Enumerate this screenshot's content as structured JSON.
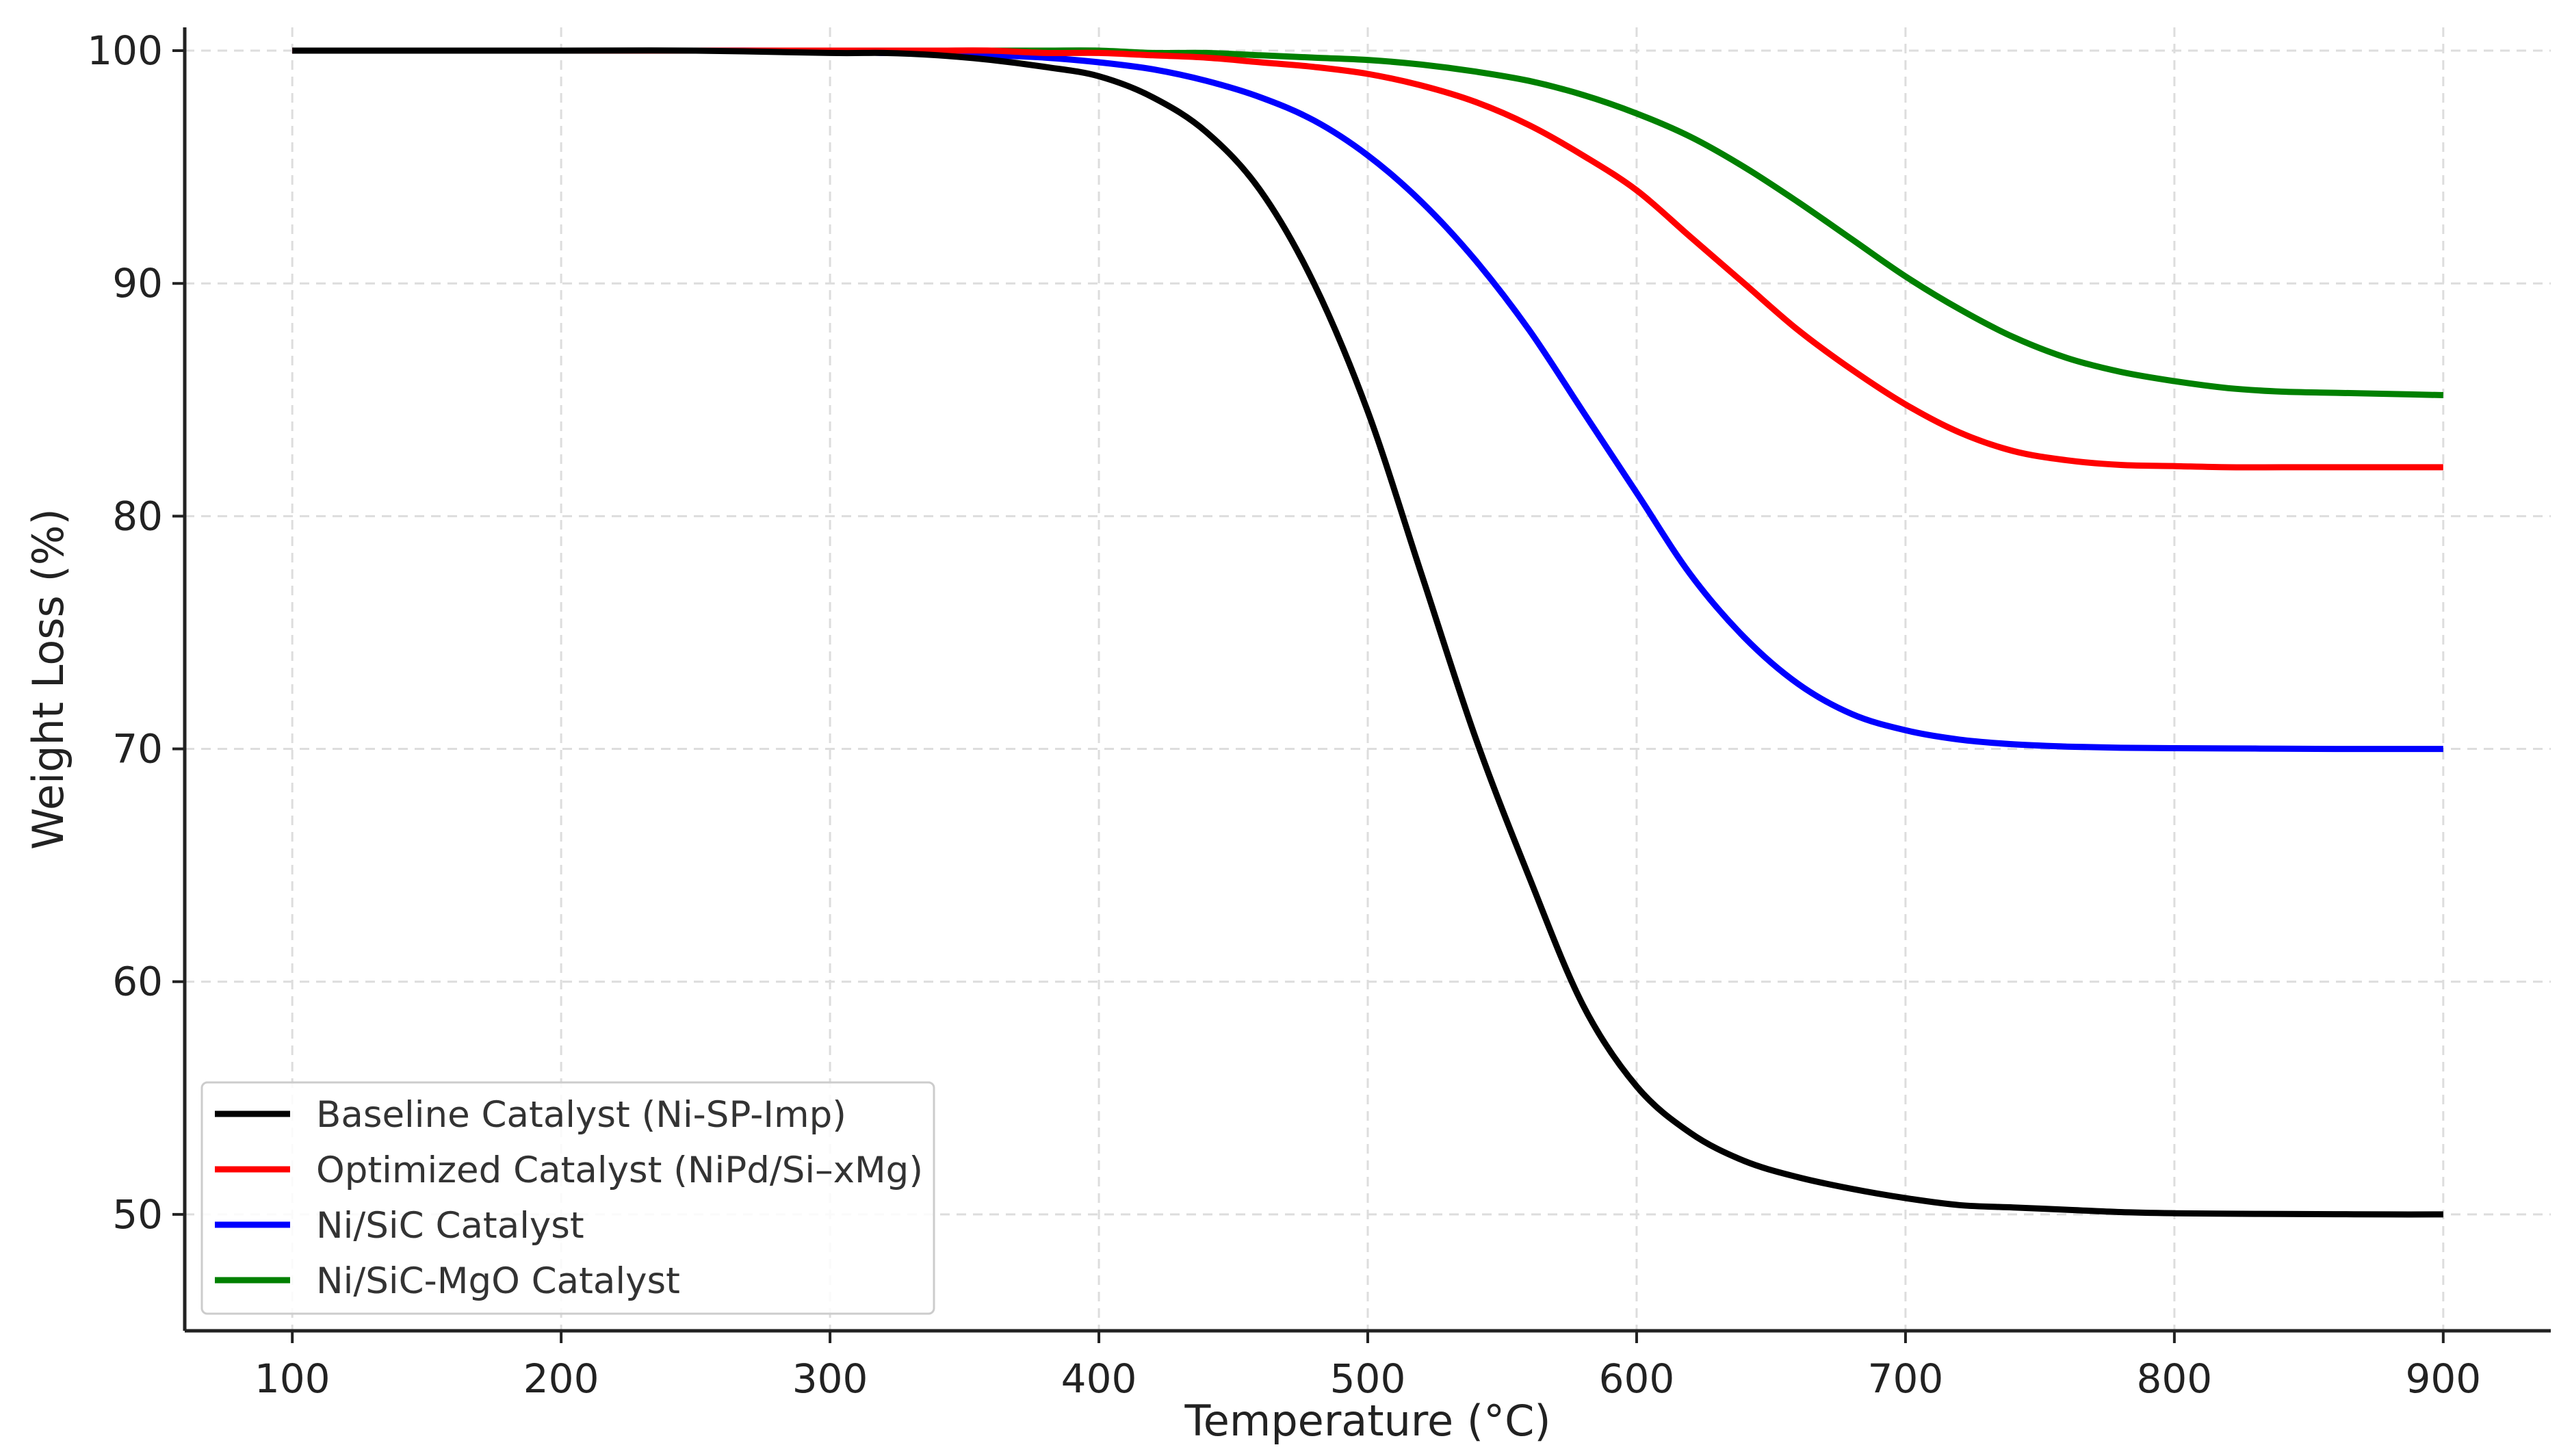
{
  "chart_data": {
    "type": "line",
    "title": "",
    "xlabel": "Temperature (°C)",
    "ylabel": "Weight Loss (%)",
    "xlim": [
      60,
      940
    ],
    "ylim": [
      45,
      101
    ],
    "xticks": [
      100,
      200,
      300,
      400,
      500,
      600,
      700,
      800,
      900
    ],
    "yticks": [
      50,
      60,
      70,
      80,
      90,
      100
    ],
    "grid": true,
    "legend_position": "lower-left",
    "x": [
      100,
      150,
      200,
      250,
      300,
      320,
      340,
      360,
      380,
      400,
      420,
      440,
      460,
      480,
      500,
      520,
      540,
      560,
      580,
      600,
      620,
      640,
      660,
      680,
      700,
      720,
      740,
      760,
      780,
      800,
      820,
      840,
      860,
      880,
      900
    ],
    "series": [
      {
        "name": "Baseline Catalyst (Ni-SP-Imp)",
        "color": "#000000",
        "values": [
          100.0,
          100.0,
          100.0,
          100.0,
          99.9,
          99.9,
          99.8,
          99.6,
          99.3,
          98.9,
          98.0,
          96.5,
          94.0,
          90.0,
          84.5,
          77.5,
          70.5,
          64.5,
          59.0,
          55.5,
          53.5,
          52.3,
          51.6,
          51.1,
          50.7,
          50.4,
          50.3,
          50.2,
          50.1,
          50.05,
          50.03,
          50.02,
          50.01,
          50.0,
          50.0
        ]
      },
      {
        "name": "Optimized Catalyst (NiPd/Si–xMg)",
        "color": "#ff0000",
        "values": [
          100.0,
          100.0,
          100.0,
          100.0,
          100.0,
          100.0,
          100.0,
          100.0,
          99.9,
          99.9,
          99.8,
          99.7,
          99.5,
          99.3,
          99.0,
          98.5,
          97.8,
          96.8,
          95.5,
          94.0,
          92.0,
          90.0,
          88.0,
          86.3,
          84.8,
          83.6,
          82.8,
          82.4,
          82.2,
          82.15,
          82.1,
          82.1,
          82.1,
          82.1,
          82.1
        ]
      },
      {
        "name": "Ni/SiC Catalyst",
        "color": "#0000ff",
        "values": [
          100.0,
          100.0,
          100.0,
          100.0,
          100.0,
          99.9,
          99.9,
          99.8,
          99.7,
          99.5,
          99.2,
          98.7,
          98.0,
          97.0,
          95.5,
          93.5,
          91.0,
          88.0,
          84.5,
          81.0,
          77.5,
          74.8,
          72.8,
          71.5,
          70.8,
          70.4,
          70.2,
          70.1,
          70.05,
          70.03,
          70.02,
          70.01,
          70.0,
          70.0,
          70.0
        ]
      },
      {
        "name": "Ni/SiC-MgO Catalyst",
        "color": "#008000",
        "values": [
          100.0,
          100.0,
          100.0,
          100.0,
          100.0,
          100.0,
          100.0,
          100.0,
          100.0,
          100.0,
          99.9,
          99.9,
          99.8,
          99.7,
          99.6,
          99.4,
          99.1,
          98.7,
          98.1,
          97.3,
          96.3,
          95.0,
          93.5,
          91.9,
          90.3,
          88.9,
          87.7,
          86.8,
          86.2,
          85.8,
          85.5,
          85.35,
          85.3,
          85.25,
          85.2
        ]
      }
    ]
  }
}
